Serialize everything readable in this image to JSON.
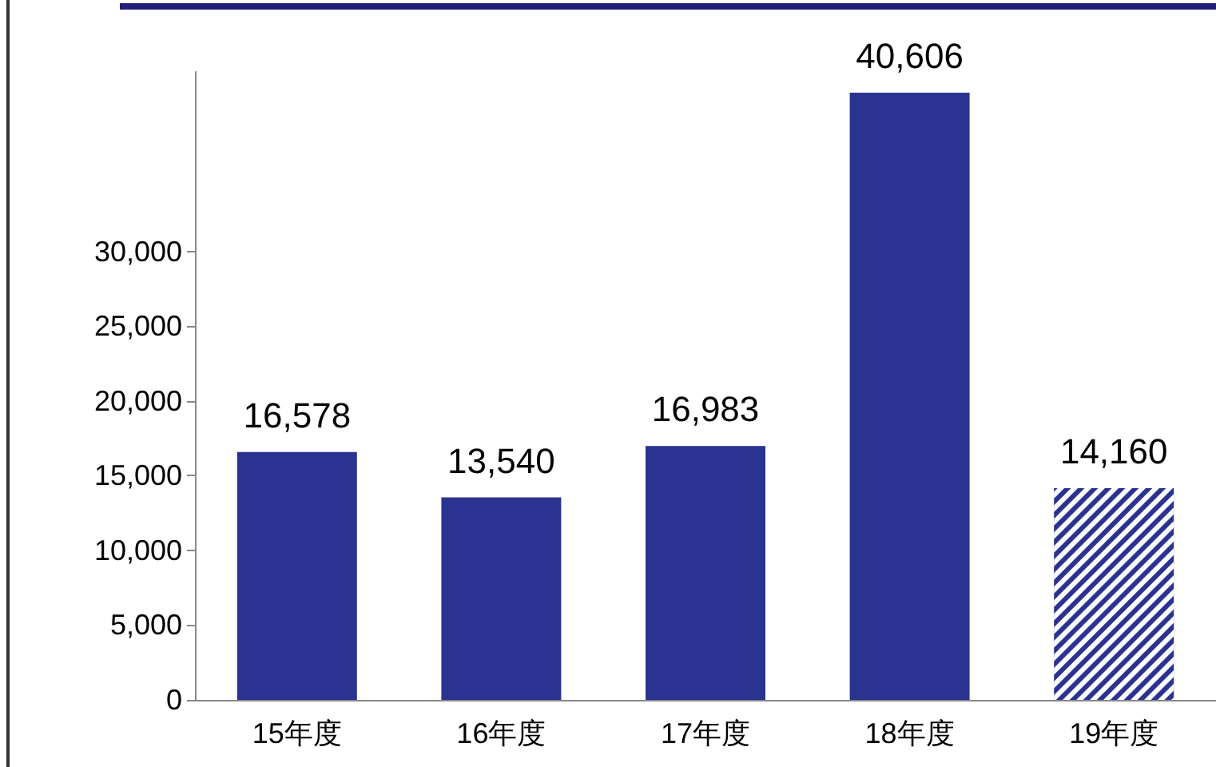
{
  "chart_data": {
    "type": "bar",
    "categories": [
      "15年度",
      "16年度",
      "17年度",
      "18年度",
      "19年度"
    ],
    "series": [
      {
        "color": "#2b3391",
        "values": [
          16578,
          13540,
          16983,
          40606,
          null
        ],
        "value_labels": [
          "16,578",
          "13,540",
          "16,983",
          "40,606",
          null
        ]
      },
      {
        "color": "#2b3391",
        "values": [
          null,
          null,
          null,
          null,
          14160
        ],
        "value_labels": [
          null,
          null,
          null,
          null,
          "14,160"
        ]
      }
    ],
    "ylim": [
      0,
      42000
    ],
    "yticks": [
      0,
      {
        "value": 5000,
        "label": "5,000"
      },
      {
        "value": 10000,
        "label": "10,000"
      },
      {
        "value": 15000,
        "label": "15,000"
      },
      {
        "value": 20000,
        "label": "20,000"
      },
      {
        "value": 25000,
        "label": "25,000"
      },
      {
        "value": 30000,
        "label": "30,000"
      }
    ],
    "grid": false
  }
}
